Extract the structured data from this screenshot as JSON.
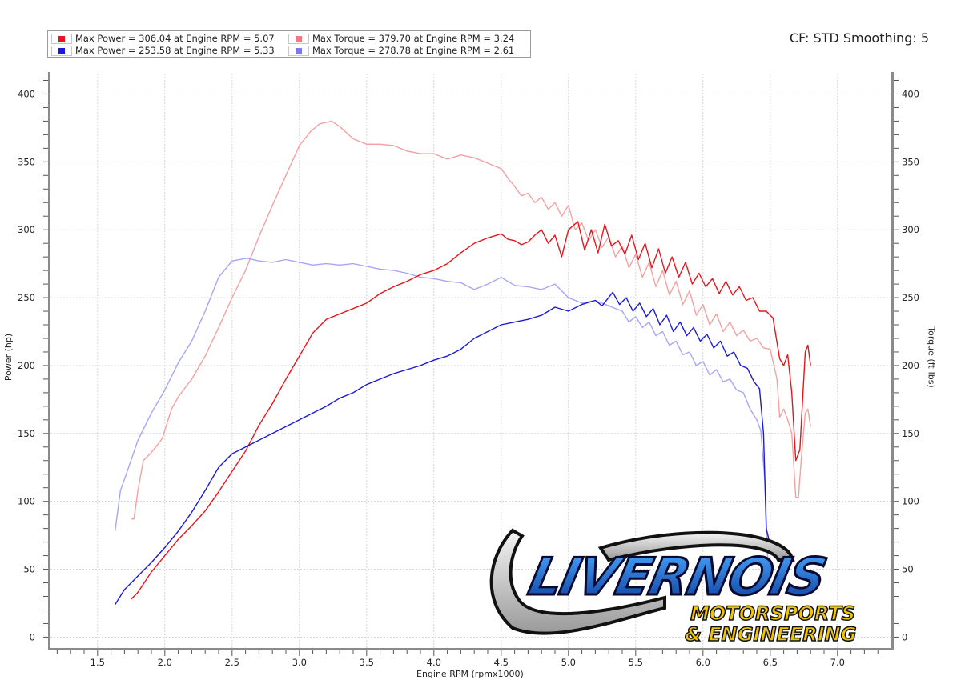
{
  "header": {
    "cf_text": "CF: STD Smoothing: 5"
  },
  "legend": [
    {
      "color": "#e8141c",
      "label": "Max Power = 306.04 at Engine RPM = 5.07"
    },
    {
      "color": "#1a1ad8",
      "label": "Max Power = 253.58 at Engine RPM = 5.33"
    },
    {
      "color": "#f07a7a",
      "label": "Max Torque = 379.70 at Engine RPM = 3.24"
    },
    {
      "color": "#7a7af0",
      "label": "Max Torque = 278.78 at Engine RPM = 2.61"
    }
  ],
  "logo": {
    "name": "LIVERNOIS",
    "line2": "MOTORSPORTS",
    "line3": "& ENGINEERING"
  },
  "chart_data": {
    "type": "line",
    "xlabel": "Engine RPM (rpmx1000)",
    "ylabel": "Power (hp)",
    "ylabel_right": "Torque (ft-lbs)",
    "xlim": [
      1.15,
      7.4
    ],
    "ylim": [
      -8,
      415
    ],
    "ylim_right": [
      -8,
      415
    ],
    "x_ticks": [
      "1.5",
      "2.0",
      "2.5",
      "3.0",
      "3.5",
      "4.0",
      "4.5",
      "5.0",
      "5.5",
      "6.0",
      "6.5",
      "7.0"
    ],
    "y_ticks": [
      "0",
      "50",
      "100",
      "150",
      "200",
      "250",
      "300",
      "350",
      "400"
    ],
    "y_ticks_right": [
      "0",
      "50",
      "100",
      "150",
      "200",
      "250",
      "300",
      "350",
      "400"
    ],
    "grid": true,
    "series": [
      {
        "name": "Max Torque = 379.70 at Engine RPM = 3.24",
        "color": "#f4a0a0",
        "axis": "right",
        "points": [
          [
            1.75,
            87
          ],
          [
            1.77,
            87
          ],
          [
            1.8,
            108
          ],
          [
            1.84,
            130
          ],
          [
            1.9,
            136
          ],
          [
            1.98,
            146
          ],
          [
            2.05,
            168
          ],
          [
            2.1,
            177
          ],
          [
            2.2,
            190
          ],
          [
            2.3,
            207
          ],
          [
            2.4,
            228
          ],
          [
            2.5,
            250
          ],
          [
            2.6,
            270
          ],
          [
            2.7,
            295
          ],
          [
            2.8,
            318
          ],
          [
            2.9,
            340
          ],
          [
            3.0,
            362
          ],
          [
            3.08,
            372
          ],
          [
            3.15,
            378
          ],
          [
            3.24,
            380
          ],
          [
            3.3,
            376
          ],
          [
            3.4,
            367
          ],
          [
            3.5,
            363
          ],
          [
            3.6,
            363
          ],
          [
            3.7,
            362
          ],
          [
            3.8,
            358
          ],
          [
            3.9,
            356
          ],
          [
            4.0,
            356
          ],
          [
            4.1,
            352
          ],
          [
            4.2,
            355
          ],
          [
            4.3,
            353
          ],
          [
            4.4,
            349
          ],
          [
            4.5,
            345
          ],
          [
            4.55,
            338
          ],
          [
            4.6,
            332
          ],
          [
            4.65,
            325
          ],
          [
            4.7,
            327
          ],
          [
            4.75,
            320
          ],
          [
            4.8,
            324
          ],
          [
            4.85,
            315
          ],
          [
            4.9,
            320
          ],
          [
            4.95,
            310
          ],
          [
            5.0,
            318
          ],
          [
            5.05,
            300
          ],
          [
            5.1,
            305
          ],
          [
            5.15,
            292
          ],
          [
            5.2,
            300
          ],
          [
            5.25,
            287
          ],
          [
            5.3,
            295
          ],
          [
            5.35,
            280
          ],
          [
            5.4,
            288
          ],
          [
            5.45,
            272
          ],
          [
            5.5,
            282
          ],
          [
            5.55,
            265
          ],
          [
            5.6,
            276
          ],
          [
            5.65,
            258
          ],
          [
            5.7,
            270
          ],
          [
            5.75,
            252
          ],
          [
            5.8,
            262
          ],
          [
            5.85,
            245
          ],
          [
            5.9,
            255
          ],
          [
            5.95,
            237
          ],
          [
            6.0,
            245
          ],
          [
            6.05,
            230
          ],
          [
            6.1,
            238
          ],
          [
            6.15,
            225
          ],
          [
            6.2,
            232
          ],
          [
            6.25,
            222
          ],
          [
            6.3,
            226
          ],
          [
            6.35,
            218
          ],
          [
            6.4,
            220
          ],
          [
            6.45,
            213
          ],
          [
            6.5,
            212
          ],
          [
            6.55,
            190
          ],
          [
            6.57,
            162
          ],
          [
            6.6,
            168
          ],
          [
            6.63,
            160
          ],
          [
            6.66,
            150
          ],
          [
            6.69,
            103
          ],
          [
            6.71,
            103
          ],
          [
            6.73,
            130
          ],
          [
            6.76,
            165
          ],
          [
            6.78,
            168
          ],
          [
            6.8,
            155
          ]
        ]
      },
      {
        "name": "Max Torque = 278.78 at Engine RPM = 2.61",
        "color": "#a6a6f4",
        "axis": "right",
        "points": [
          [
            1.63,
            78
          ],
          [
            1.67,
            108
          ],
          [
            1.72,
            122
          ],
          [
            1.8,
            145
          ],
          [
            1.9,
            165
          ],
          [
            2.0,
            182
          ],
          [
            2.1,
            202
          ],
          [
            2.2,
            218
          ],
          [
            2.3,
            240
          ],
          [
            2.4,
            265
          ],
          [
            2.5,
            277
          ],
          [
            2.61,
            279
          ],
          [
            2.7,
            277
          ],
          [
            2.8,
            276
          ],
          [
            2.9,
            278
          ],
          [
            3.0,
            276
          ],
          [
            3.1,
            274
          ],
          [
            3.2,
            275
          ],
          [
            3.3,
            274
          ],
          [
            3.4,
            275
          ],
          [
            3.5,
            273
          ],
          [
            3.6,
            271
          ],
          [
            3.7,
            270
          ],
          [
            3.8,
            268
          ],
          [
            3.9,
            265
          ],
          [
            4.0,
            264
          ],
          [
            4.1,
            262
          ],
          [
            4.2,
            261
          ],
          [
            4.3,
            256
          ],
          [
            4.4,
            260
          ],
          [
            4.5,
            265
          ],
          [
            4.6,
            259
          ],
          [
            4.7,
            258
          ],
          [
            4.8,
            256
          ],
          [
            4.9,
            260
          ],
          [
            5.0,
            250
          ],
          [
            5.1,
            246
          ],
          [
            5.2,
            248
          ],
          [
            5.3,
            244
          ],
          [
            5.4,
            240
          ],
          [
            5.45,
            232
          ],
          [
            5.5,
            236
          ],
          [
            5.55,
            228
          ],
          [
            5.6,
            232
          ],
          [
            5.65,
            222
          ],
          [
            5.7,
            225
          ],
          [
            5.75,
            215
          ],
          [
            5.8,
            218
          ],
          [
            5.85,
            208
          ],
          [
            5.9,
            210
          ],
          [
            5.95,
            200
          ],
          [
            6.0,
            203
          ],
          [
            6.05,
            193
          ],
          [
            6.1,
            197
          ],
          [
            6.15,
            188
          ],
          [
            6.2,
            190
          ],
          [
            6.25,
            182
          ],
          [
            6.3,
            180
          ],
          [
            6.35,
            168
          ],
          [
            6.4,
            160
          ],
          [
            6.43,
            152
          ],
          [
            6.46,
            115
          ],
          [
            6.48,
            60
          ],
          [
            6.5,
            45
          ]
        ]
      },
      {
        "name": "Max Power = 306.04 at Engine RPM = 5.07",
        "color": "#e8141c",
        "axis": "left",
        "points": [
          [
            1.75,
            28
          ],
          [
            1.8,
            33
          ],
          [
            1.9,
            48
          ],
          [
            2.0,
            60
          ],
          [
            2.1,
            72
          ],
          [
            2.2,
            82
          ],
          [
            2.3,
            93
          ],
          [
            2.4,
            107
          ],
          [
            2.5,
            122
          ],
          [
            2.6,
            137
          ],
          [
            2.7,
            156
          ],
          [
            2.8,
            172
          ],
          [
            2.9,
            190
          ],
          [
            3.0,
            207
          ],
          [
            3.1,
            224
          ],
          [
            3.2,
            234
          ],
          [
            3.3,
            238
          ],
          [
            3.4,
            242
          ],
          [
            3.5,
            246
          ],
          [
            3.6,
            253
          ],
          [
            3.7,
            258
          ],
          [
            3.8,
            262
          ],
          [
            3.9,
            267
          ],
          [
            4.0,
            270
          ],
          [
            4.1,
            275
          ],
          [
            4.2,
            283
          ],
          [
            4.3,
            290
          ],
          [
            4.4,
            294
          ],
          [
            4.5,
            297
          ],
          [
            4.55,
            293
          ],
          [
            4.6,
            292
          ],
          [
            4.65,
            289
          ],
          [
            4.7,
            291
          ],
          [
            4.75,
            296
          ],
          [
            4.8,
            300
          ],
          [
            4.85,
            290
          ],
          [
            4.9,
            296
          ],
          [
            4.95,
            280
          ],
          [
            5.0,
            300
          ],
          [
            5.07,
            306
          ],
          [
            5.12,
            285
          ],
          [
            5.17,
            300
          ],
          [
            5.22,
            283
          ],
          [
            5.27,
            304
          ],
          [
            5.32,
            288
          ],
          [
            5.37,
            292
          ],
          [
            5.42,
            282
          ],
          [
            5.47,
            296
          ],
          [
            5.52,
            278
          ],
          [
            5.57,
            290
          ],
          [
            5.62,
            272
          ],
          [
            5.67,
            286
          ],
          [
            5.72,
            268
          ],
          [
            5.77,
            280
          ],
          [
            5.82,
            265
          ],
          [
            5.87,
            276
          ],
          [
            5.92,
            260
          ],
          [
            5.97,
            268
          ],
          [
            6.02,
            258
          ],
          [
            6.07,
            264
          ],
          [
            6.12,
            253
          ],
          [
            6.17,
            262
          ],
          [
            6.22,
            252
          ],
          [
            6.27,
            258
          ],
          [
            6.32,
            248
          ],
          [
            6.37,
            250
          ],
          [
            6.42,
            240
          ],
          [
            6.47,
            240
          ],
          [
            6.52,
            235
          ],
          [
            6.57,
            205
          ],
          [
            6.6,
            200
          ],
          [
            6.63,
            208
          ],
          [
            6.66,
            180
          ],
          [
            6.69,
            130
          ],
          [
            6.72,
            138
          ],
          [
            6.76,
            210
          ],
          [
            6.78,
            215
          ],
          [
            6.8,
            200
          ]
        ]
      },
      {
        "name": "Max Power = 253.58 at Engine RPM = 5.33",
        "color": "#1a1ad8",
        "axis": "left",
        "points": [
          [
            1.63,
            24
          ],
          [
            1.7,
            35
          ],
          [
            1.8,
            45
          ],
          [
            1.9,
            55
          ],
          [
            2.0,
            66
          ],
          [
            2.1,
            78
          ],
          [
            2.2,
            92
          ],
          [
            2.3,
            108
          ],
          [
            2.4,
            125
          ],
          [
            2.5,
            135
          ],
          [
            2.6,
            140
          ],
          [
            2.7,
            145
          ],
          [
            2.8,
            150
          ],
          [
            2.9,
            155
          ],
          [
            3.0,
            160
          ],
          [
            3.1,
            165
          ],
          [
            3.2,
            170
          ],
          [
            3.3,
            176
          ],
          [
            3.4,
            180
          ],
          [
            3.5,
            186
          ],
          [
            3.6,
            190
          ],
          [
            3.7,
            194
          ],
          [
            3.8,
            197
          ],
          [
            3.9,
            200
          ],
          [
            4.0,
            204
          ],
          [
            4.1,
            207
          ],
          [
            4.2,
            212
          ],
          [
            4.3,
            220
          ],
          [
            4.4,
            225
          ],
          [
            4.5,
            230
          ],
          [
            4.6,
            232
          ],
          [
            4.7,
            234
          ],
          [
            4.8,
            237
          ],
          [
            4.9,
            243
          ],
          [
            5.0,
            240
          ],
          [
            5.1,
            245
          ],
          [
            5.2,
            248
          ],
          [
            5.25,
            244
          ],
          [
            5.33,
            254
          ],
          [
            5.38,
            245
          ],
          [
            5.43,
            250
          ],
          [
            5.48,
            240
          ],
          [
            5.53,
            246
          ],
          [
            5.58,
            236
          ],
          [
            5.63,
            242
          ],
          [
            5.68,
            230
          ],
          [
            5.73,
            237
          ],
          [
            5.78,
            225
          ],
          [
            5.83,
            232
          ],
          [
            5.88,
            222
          ],
          [
            5.93,
            228
          ],
          [
            5.98,
            218
          ],
          [
            6.03,
            223
          ],
          [
            6.08,
            213
          ],
          [
            6.13,
            218
          ],
          [
            6.18,
            207
          ],
          [
            6.23,
            210
          ],
          [
            6.28,
            200
          ],
          [
            6.33,
            198
          ],
          [
            6.38,
            188
          ],
          [
            6.42,
            183
          ],
          [
            6.45,
            150
          ],
          [
            6.47,
            80
          ],
          [
            6.49,
            72
          ]
        ]
      }
    ]
  }
}
